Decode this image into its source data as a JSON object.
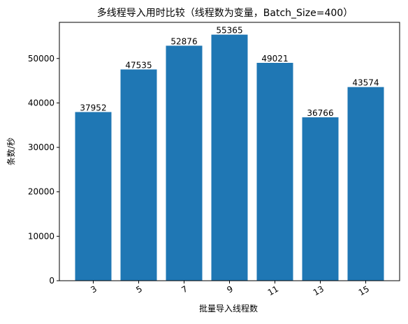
{
  "chart_data": {
    "type": "bar",
    "title": "多线程导入用时比较（线程数为变量，Batch_Size=400）",
    "xlabel": "批量导入线程数",
    "ylabel": "条数/秒",
    "categories": [
      "3",
      "5",
      "7",
      "9",
      "11",
      "13",
      "15"
    ],
    "values": [
      37952,
      47535,
      52876,
      55365,
      49021,
      36766,
      43574
    ],
    "data_labels": [
      "37952",
      "47535",
      "52876",
      "55365",
      "49021",
      "36766",
      "43574"
    ],
    "ylim": [
      0,
      58133
    ],
    "yticks": [
      0,
      10000,
      20000,
      30000,
      40000,
      50000
    ],
    "ytick_labels": [
      "0",
      "10000",
      "20000",
      "30000",
      "40000",
      "50000"
    ],
    "grid": false,
    "bar_color": "#1f77b4",
    "xtick_rotation": "slanted"
  }
}
